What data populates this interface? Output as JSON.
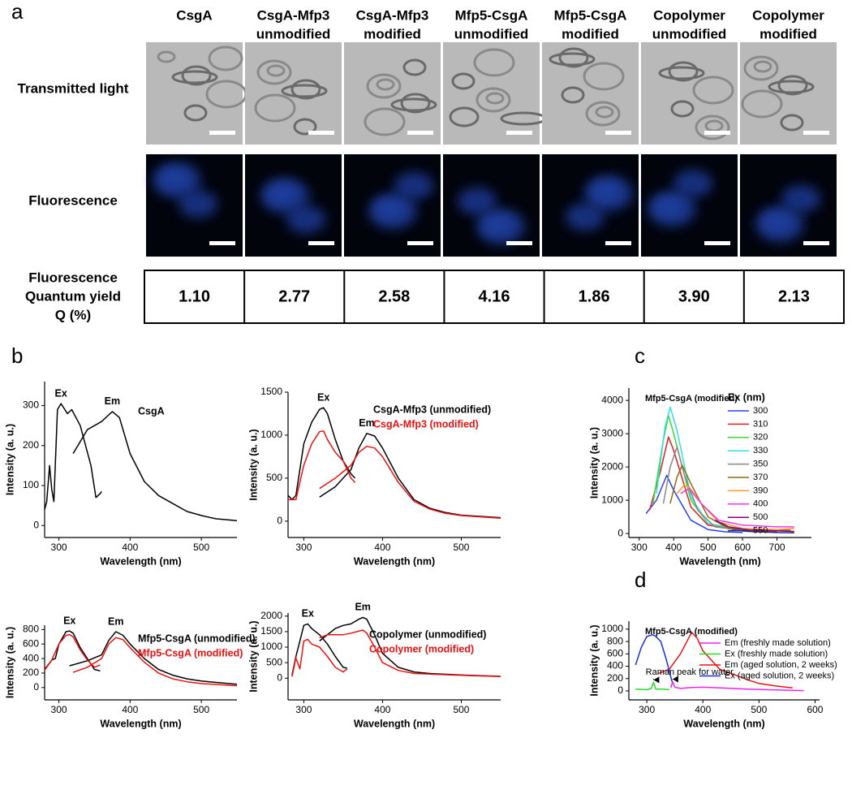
{
  "panel_labels": [
    "a",
    "b",
    "c",
    "d"
  ],
  "panel_a": {
    "columns": [
      [
        "CsgA"
      ],
      [
        "CsgA-Mfp3",
        "unmodified"
      ],
      [
        "CsgA-Mfp3",
        "modified"
      ],
      [
        "Mfp5-CsgA",
        "unmodified"
      ],
      [
        "Mfp5-CsgA",
        "modified"
      ],
      [
        "Copolymer",
        "unmodified"
      ],
      [
        "Copolymer",
        "modified"
      ]
    ],
    "rows": [
      "Transmitted light",
      "Fluorescence"
    ],
    "table": {
      "label": [
        "Fluorescence",
        "Quantum yield",
        "Q (%)"
      ],
      "values": [
        "1.10",
        "2.77",
        "2.58",
        "4.16",
        "1.86",
        "3.90",
        "2.13"
      ]
    }
  },
  "chart_data": [
    {
      "type": "line",
      "x_label": "Wavelength (nm)",
      "y_label": "Intensity (a. u.)",
      "xlim": [
        280,
        550
      ],
      "xticks": [
        300,
        400,
        500
      ],
      "ylim": [
        -30,
        360
      ],
      "yticks": [
        0,
        100,
        200,
        300
      ],
      "curve_labels": {
        "ex": "Ex",
        "em": "Em"
      },
      "series": [
        {
          "name": "CsgA",
          "color": "#000000",
          "ex": {
            "x": [
              280,
              283,
              287,
              290,
              293,
              298,
              303,
              312,
              318,
              330,
              345,
              352,
              358,
              360
            ],
            "values": [
              40,
              60,
              150,
              90,
              60,
              290,
              305,
              280,
              290,
              250,
              150,
              70,
              80,
              85
            ]
          },
          "em": {
            "x": [
              320,
              340,
              360,
              375,
              385,
              400,
              420,
              440,
              460,
              480,
              500,
              520,
              550
            ],
            "values": [
              180,
              240,
              260,
              285,
              270,
              180,
              110,
              75,
              55,
              35,
              25,
              17,
              12
            ]
          }
        }
      ]
    },
    {
      "type": "line",
      "x_label": "Wavelength (nm)",
      "y_label": "Intensity (a. u.)",
      "xlim": [
        280,
        550
      ],
      "xticks": [
        300,
        400,
        500
      ],
      "ylim": [
        -190,
        1500
      ],
      "yticks": [
        0,
        500,
        1000,
        1500
      ],
      "curve_labels": {
        "ex": "Ex",
        "em": "Em"
      },
      "series": [
        {
          "name": "CsgA-Mfp3 (unmodified)",
          "color": "#000000",
          "ex": {
            "x": [
              280,
              285,
              290,
              300,
              310,
              320,
              325,
              330,
              340,
              350,
              360,
              365
            ],
            "values": [
              300,
              250,
              300,
              900,
              1150,
              1300,
              1320,
              1250,
              950,
              700,
              550,
              500
            ]
          },
          "em": {
            "x": [
              320,
              340,
              360,
              370,
              380,
              390,
              400,
              420,
              440,
              460,
              480,
              500,
              550
            ],
            "values": [
              280,
              400,
              600,
              850,
              1020,
              990,
              850,
              500,
              250,
              150,
              100,
              70,
              40
            ]
          }
        },
        {
          "name": "CsgA-Mfp3 (modified)",
          "color": "#ee1111",
          "ex": {
            "x": [
              280,
              290,
              300,
              310,
              320,
              325,
              330,
              340,
              350,
              360,
              365
            ],
            "values": [
              250,
              250,
              650,
              900,
              1040,
              1050,
              950,
              800,
              700,
              500,
              450
            ]
          },
          "em": {
            "x": [
              320,
              340,
              360,
              370,
              380,
              390,
              400,
              420,
              440,
              460,
              480,
              500,
              550
            ],
            "values": [
              380,
              500,
              650,
              800,
              870,
              850,
              750,
              450,
              230,
              140,
              90,
              65,
              35
            ]
          }
        }
      ]
    },
    {
      "type": "line",
      "x_label": "Wavelength (nm)",
      "y_label": "Intensity (a. u.)",
      "xlim": [
        280,
        550
      ],
      "xticks": [
        300,
        400,
        500
      ],
      "ylim": [
        -170,
        860
      ],
      "yticks": [
        0,
        200,
        400,
        600,
        800
      ],
      "curve_labels": {
        "ex": "Ex",
        "em": "Em"
      },
      "series": [
        {
          "name": "Mfp5-CsgA (unmodified)",
          "color": "#000000",
          "ex": {
            "x": [
              280,
              290,
              295,
              300,
              310,
              315,
              320,
              330,
              340,
              350,
              358
            ],
            "values": [
              250,
              380,
              400,
              600,
              770,
              780,
              750,
              550,
              400,
              250,
              230
            ]
          },
          "em": {
            "x": [
              315,
              340,
              360,
              370,
              380,
              390,
              400,
              420,
              440,
              460,
              480,
              500,
              550
            ],
            "values": [
              300,
              370,
              450,
              650,
              770,
              720,
              600,
              400,
              250,
              170,
              120,
              90,
              45
            ]
          }
        },
        {
          "name": "Mfp5-CsgA (modified)",
          "color": "#ee1111",
          "ex": {
            "x": [
              280,
              290,
              300,
              310,
              315,
              320,
              330,
              340,
              350,
              358
            ],
            "values": [
              240,
              380,
              600,
              720,
              730,
              700,
              520,
              380,
              280,
              310
            ]
          },
          "em": {
            "x": [
              320,
              340,
              360,
              370,
              380,
              390,
              400,
              420,
              440,
              460,
              480,
              500,
              550
            ],
            "values": [
              210,
              280,
              400,
              600,
              690,
              660,
              550,
              350,
              200,
              120,
              80,
              55,
              25
            ]
          }
        }
      ]
    },
    {
      "type": "line",
      "x_label": "Wavelength (nm)",
      "y_label": "Intensity (a. u.)",
      "xlim": [
        280,
        550
      ],
      "xticks": [
        300,
        400,
        500
      ],
      "ylim": [
        -700,
        2100
      ],
      "yticks": [
        0,
        500,
        1000,
        1500,
        2000
      ],
      "curve_labels": {
        "ex": "Ex",
        "em": "Em"
      },
      "series": [
        {
          "name": "Copolymer (unmodified)",
          "color": "#000000",
          "ex": {
            "x": [
              285,
              290,
              295,
              300,
              305,
              310,
              320,
              330,
              340,
              350,
              355
            ],
            "values": [
              100,
              700,
              1200,
              1700,
              1750,
              1600,
              1400,
              1100,
              700,
              350,
              320
            ]
          },
          "em": {
            "x": [
              320,
              340,
              350,
              360,
              370,
              375,
              380,
              390,
              400,
              420,
              440,
              460,
              500,
              550
            ],
            "values": [
              1200,
              1600,
              1700,
              1750,
              1900,
              1960,
              1900,
              1400,
              800,
              350,
              200,
              150,
              100,
              60
            ]
          }
        },
        {
          "name": "Copolymer (modified)",
          "color": "#ee1111",
          "ex": {
            "x": [
              285,
              290,
              295,
              300,
              305,
              310,
              320,
              330,
              340,
              350,
              355
            ],
            "values": [
              50,
              650,
              300,
              1200,
              1250,
              1100,
              1000,
              700,
              350,
              200,
              300
            ]
          },
          "em": {
            "x": [
              320,
              330,
              350,
              360,
              375,
              380,
              390,
              400,
              420,
              440,
              460,
              500,
              550
            ],
            "values": [
              1300,
              1400,
              1400,
              1450,
              1550,
              1450,
              1000,
              500,
              250,
              150,
              130,
              90,
              50
            ]
          }
        }
      ]
    },
    {
      "type": "line",
      "x_label": "Wavelength (nm)",
      "y_label": "Intensity (a. u.)",
      "label": "Mfp5-CsgA (modified)",
      "legend_title": "Ex (nm)",
      "xlim": [
        270,
        800
      ],
      "xticks": [
        300,
        400,
        500,
        600,
        700
      ],
      "ylim": [
        -120,
        4370
      ],
      "yticks": [
        0,
        1000,
        2000,
        3000,
        4000
      ],
      "series": [
        {
          "name": "300",
          "color": "#2a3ff0",
          "x": [
            320,
            350,
            380,
            400,
            450,
            500,
            550,
            600
          ],
          "values": [
            600,
            1000,
            1750,
            1300,
            400,
            120,
            50,
            30
          ]
        },
        {
          "name": "310",
          "color": "#e02020",
          "x": [
            330,
            360,
            385,
            400,
            450,
            500,
            600,
            700
          ],
          "values": [
            700,
            1800,
            2900,
            2500,
            800,
            250,
            80,
            60
          ]
        },
        {
          "name": "320",
          "color": "#33dd33",
          "x": [
            340,
            370,
            385,
            400,
            450,
            500,
            600,
            700
          ],
          "values": [
            900,
            2800,
            3550,
            3000,
            1000,
            300,
            100,
            80
          ]
        },
        {
          "name": "330",
          "color": "#33e0e0",
          "x": [
            350,
            375,
            390,
            410,
            450,
            500,
            600,
            700
          ],
          "values": [
            1200,
            3200,
            3800,
            3100,
            1100,
            300,
            120,
            100
          ]
        },
        {
          "name": "350",
          "color": "#888888",
          "x": [
            370,
            390,
            410,
            430,
            470,
            520,
            600,
            720
          ],
          "values": [
            900,
            2000,
            2600,
            1800,
            700,
            200,
            100,
            80
          ]
        },
        {
          "name": "370",
          "color": "#8b6b14",
          "x": [
            390,
            410,
            425,
            450,
            500,
            560,
            650,
            740
          ],
          "values": [
            900,
            1700,
            2050,
            1500,
            500,
            150,
            100,
            100
          ]
        },
        {
          "name": "390",
          "color": "#ff9922",
          "x": [
            410,
            430,
            445,
            480,
            530,
            600,
            700,
            750
          ],
          "values": [
            1200,
            1450,
            1400,
            900,
            350,
            150,
            120,
            150
          ]
        },
        {
          "name": "400",
          "color": "#ee33ee",
          "x": [
            420,
            445,
            480,
            530,
            600,
            700,
            750
          ],
          "values": [
            1200,
            1350,
            900,
            400,
            250,
            200,
            200
          ]
        },
        {
          "name": "500",
          "color": "#800080",
          "x": [
            520,
            560,
            620,
            700,
            750
          ],
          "values": [
            400,
            200,
            100,
            80,
            60
          ]
        },
        {
          "name": "550",
          "color": "#203090",
          "x": [
            570,
            620,
            700,
            750
          ],
          "values": [
            100,
            60,
            30,
            20
          ]
        }
      ]
    },
    {
      "type": "line",
      "x_label": "Wavelength (nm)",
      "y_label": "Intensity (a. u.)",
      "label": "Mfp5-CsgA (modified)",
      "annotation": "Raman peak for water",
      "xlim": [
        268,
        608
      ],
      "xticks": [
        300,
        400,
        500,
        600
      ],
      "ylim": [
        -145,
        1130
      ],
      "yticks": [
        0,
        200,
        400,
        600,
        800,
        1000
      ],
      "series": [
        {
          "name": "Em (freshly made solution)",
          "color": "#ee22ee",
          "x": [
            343,
            346,
            350,
            360,
            380,
            400,
            430,
            480,
            530,
            580
          ],
          "values": [
            50,
            150,
            60,
            40,
            55,
            60,
            50,
            30,
            15,
            5
          ]
        },
        {
          "name": "Ex (freshly made solution)",
          "color": "#22dd22",
          "x": [
            280,
            300,
            308,
            312,
            316,
            330,
            340
          ],
          "values": [
            30,
            20,
            40,
            140,
            30,
            30,
            20
          ]
        },
        {
          "name": "Em (aged solution, 2 weeks)",
          "color": "#ee1111",
          "x": [
            320,
            340,
            360,
            380,
            390,
            400,
            430,
            460,
            480,
            500,
            530,
            560
          ],
          "values": [
            280,
            350,
            600,
            950,
            850,
            650,
            350,
            250,
            180,
            120,
            80,
            50
          ]
        },
        {
          "name": "Ex (aged solution, 2 weeks)",
          "color": "#1a2ee0",
          "x": [
            280,
            290,
            300,
            310,
            315,
            325,
            335,
            345
          ],
          "values": [
            420,
            700,
            880,
            910,
            890,
            800,
            500,
            150
          ]
        }
      ]
    }
  ]
}
